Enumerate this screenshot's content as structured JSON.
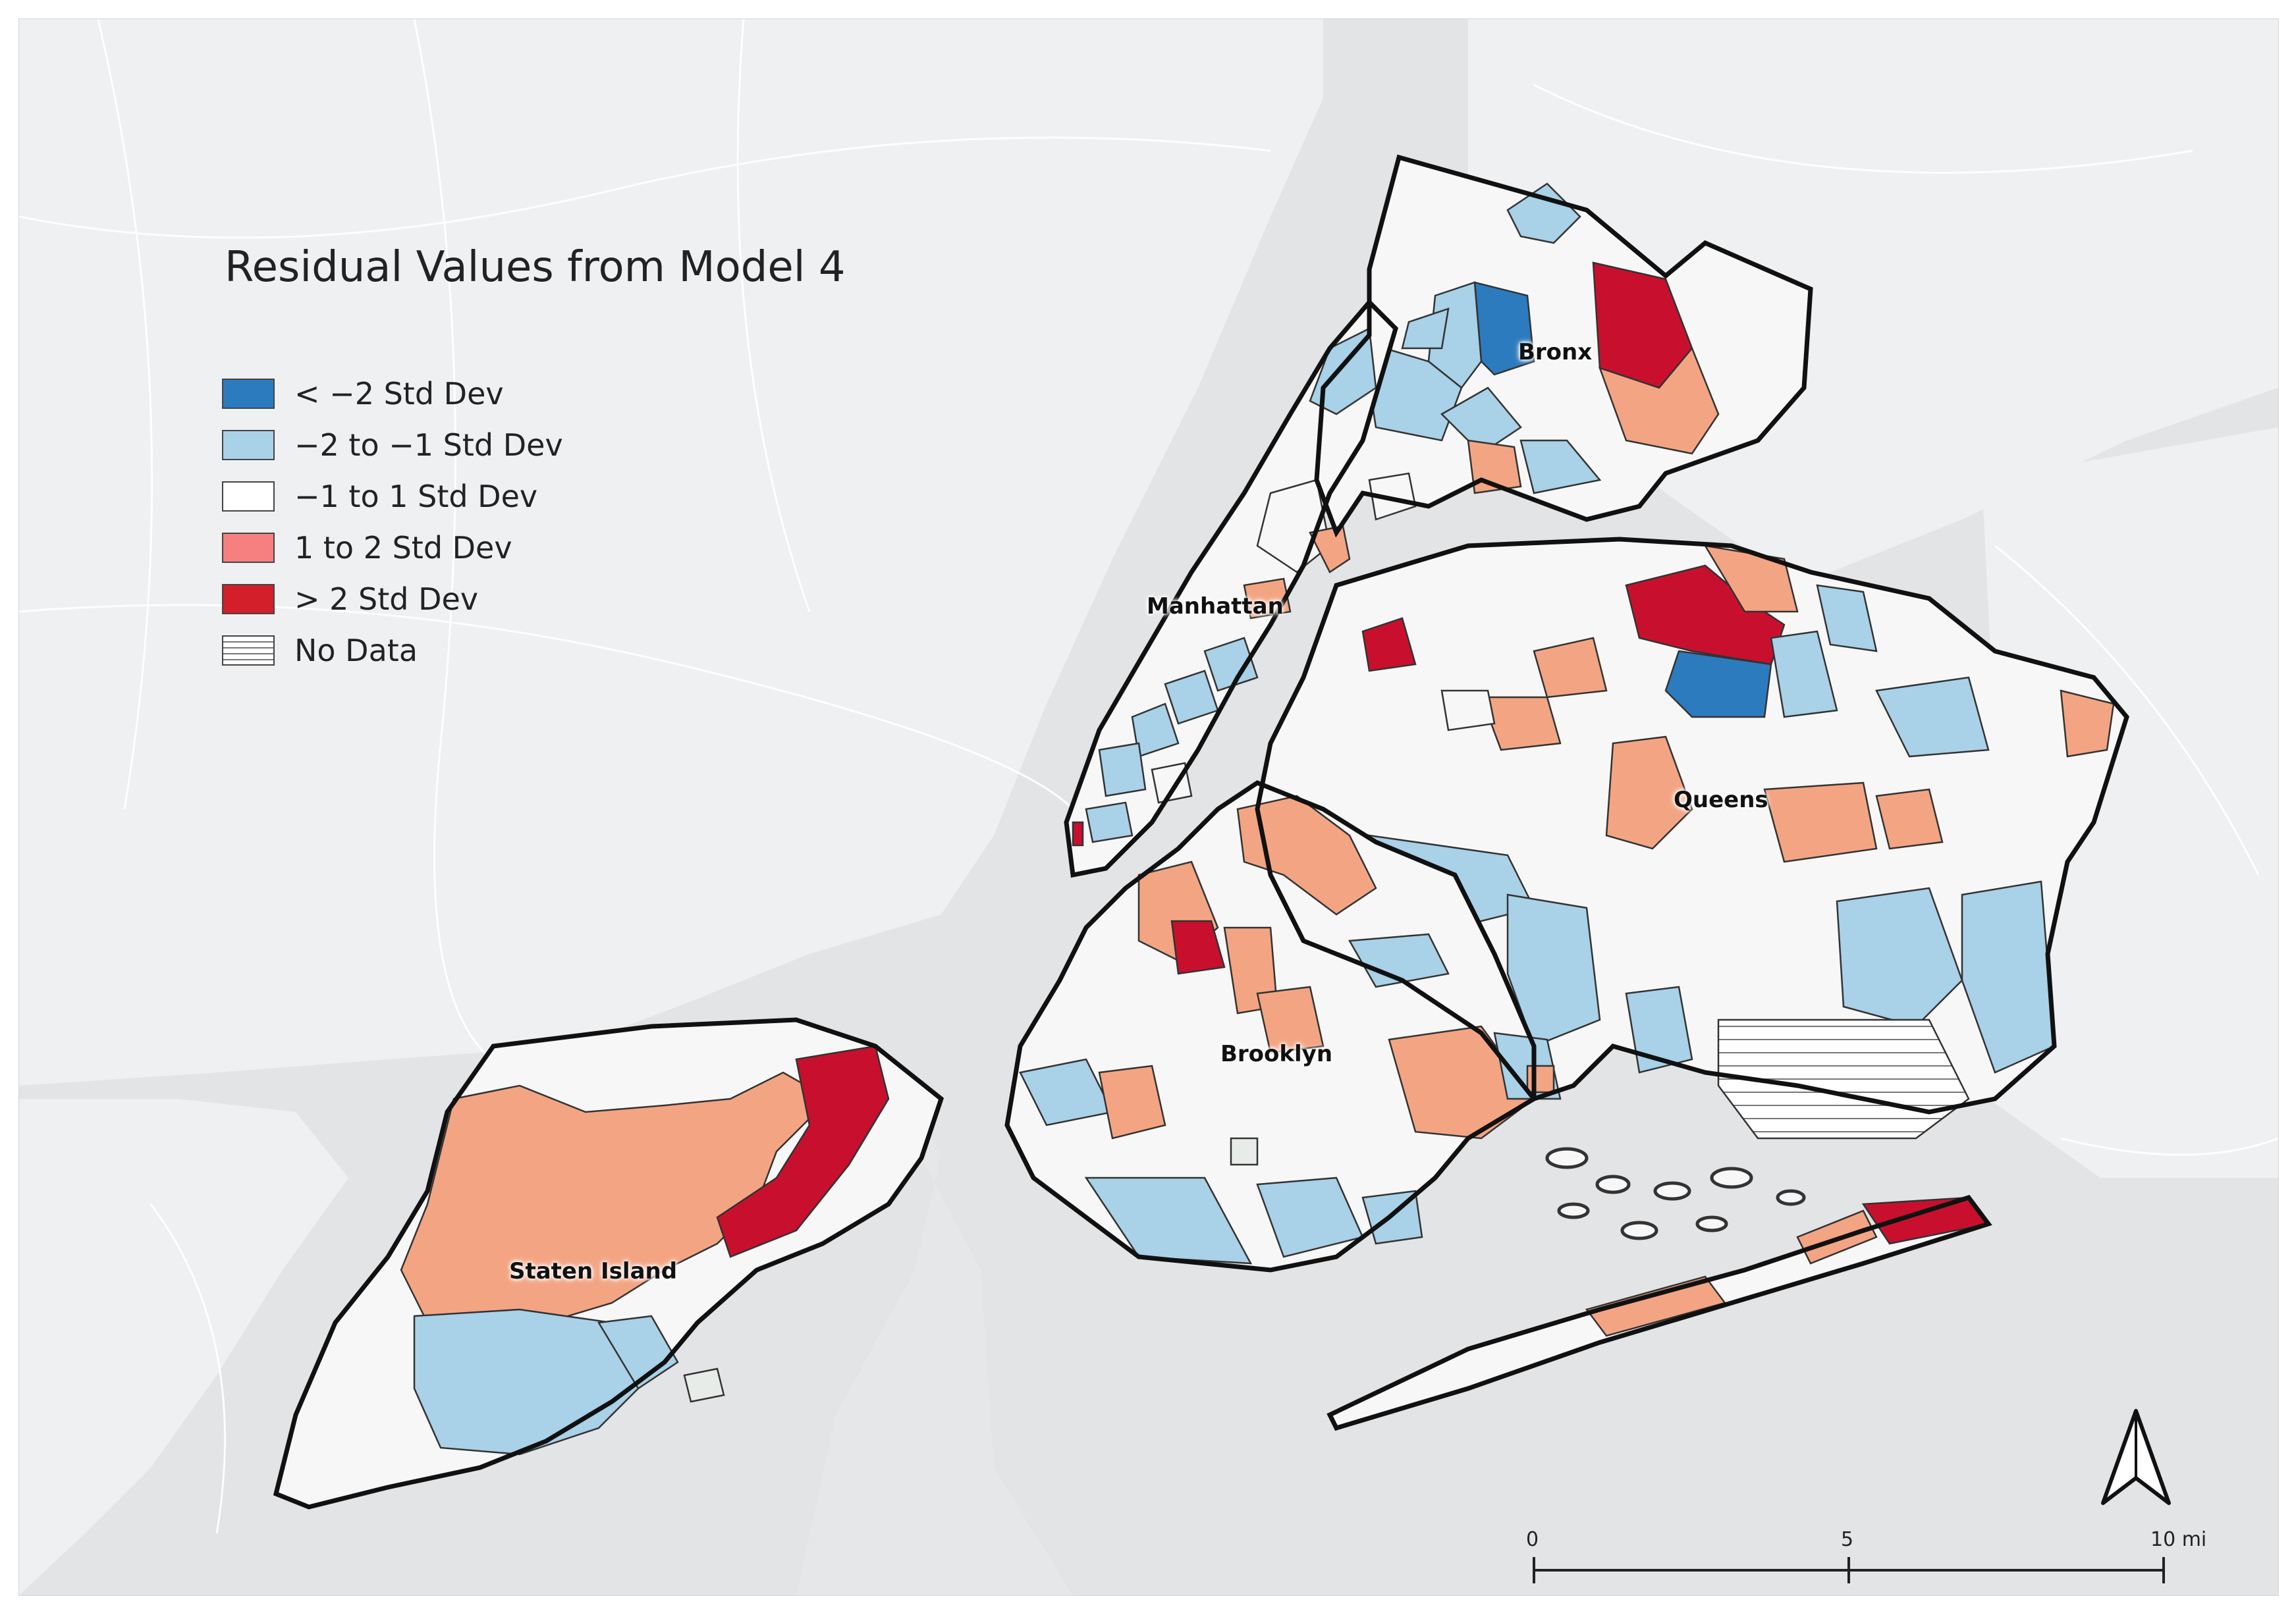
{
  "title": "Residual Values from Model 4",
  "legend": [
    {
      "label": "< −2 Std Dev",
      "color": "#2c7bbf"
    },
    {
      "label": "−2 to −1 Std Dev",
      "color": "#a9d1e8"
    },
    {
      "label": "−1 to 1 Std Dev",
      "color": "#ffffff"
    },
    {
      "label": "1 to 2 Std Dev",
      "color": "#f5807f"
    },
    {
      "label": "> 2 Std Dev",
      "color": "#d31f2a"
    },
    {
      "label": "No Data",
      "color": "hatched"
    }
  ],
  "class_colors": {
    "lt_neg2": "#2c7bbf",
    "neg2_neg1": "#a9d1e8",
    "neg1_1": "#f7f7f7",
    "pos1_2": "#f3a583",
    "gt2": "#c8102e"
  },
  "boroughs": [
    {
      "name": "Bronx"
    },
    {
      "name": "Manhattan"
    },
    {
      "name": "Queens"
    },
    {
      "name": "Brooklyn"
    },
    {
      "name": "Staten Island"
    }
  ],
  "scale_bar": {
    "labels": [
      "0",
      "5",
      "10 mi"
    ]
  },
  "north_arrow": {
    "icon": "north-arrow-icon"
  }
}
